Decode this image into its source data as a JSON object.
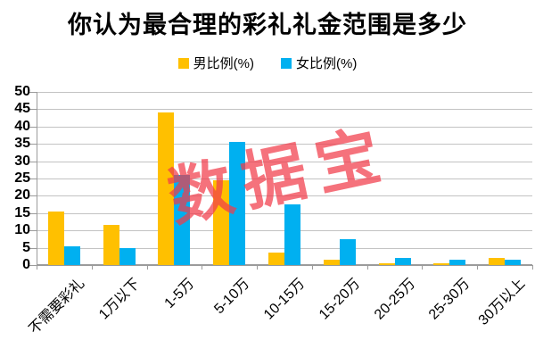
{
  "title": "你认为最合理的彩礼礼金范围是多少",
  "watermark": {
    "text": "数据宝",
    "color": "#F23C4B",
    "opacity": 0.72,
    "rotation_deg": -12
  },
  "legend": {
    "items": [
      {
        "label": "男比例(%)",
        "color": "#FFC000"
      },
      {
        "label": "女比例(%)",
        "color": "#00B0F0"
      }
    ]
  },
  "y_axis": {
    "tick_labels": [
      "50",
      "45",
      "40",
      "35",
      "30",
      "25",
      "20",
      "15",
      "10",
      "5",
      "0"
    ]
  },
  "chart_data": {
    "type": "bar",
    "title": "你认为最合理的彩礼礼金范围是多少",
    "categories": [
      "不需要彩礼",
      "1万以下",
      "1-5万",
      "5-10万",
      "10-15万",
      "15-20万",
      "20-25万",
      "25-30万",
      "30万以上"
    ],
    "series": [
      {
        "name": "男比例(%)",
        "color": "#FFC000",
        "values": [
          15.5,
          11.5,
          44,
          24.5,
          3.5,
          1.5,
          0.5,
          0.5,
          2
        ]
      },
      {
        "name": "女比例(%)",
        "color": "#00B0F0",
        "values": [
          5.5,
          5,
          26,
          35.5,
          17.5,
          7.5,
          2,
          1.5,
          1.5
        ]
      }
    ],
    "xlabel": "",
    "ylabel": "",
    "ylim": [
      0,
      50
    ],
    "ytick_step": 5,
    "grid": true,
    "legend_position": "top",
    "bar_colors": {
      "male": "#FFC000",
      "female": "#00B0F0"
    }
  },
  "colors": {
    "male_series": "#FFC000",
    "female_series": "#00B0F0",
    "gridline": "#C3C3C3",
    "axis": "#9B9B9B",
    "text": "#000000",
    "watermark": "#F23C4B"
  }
}
